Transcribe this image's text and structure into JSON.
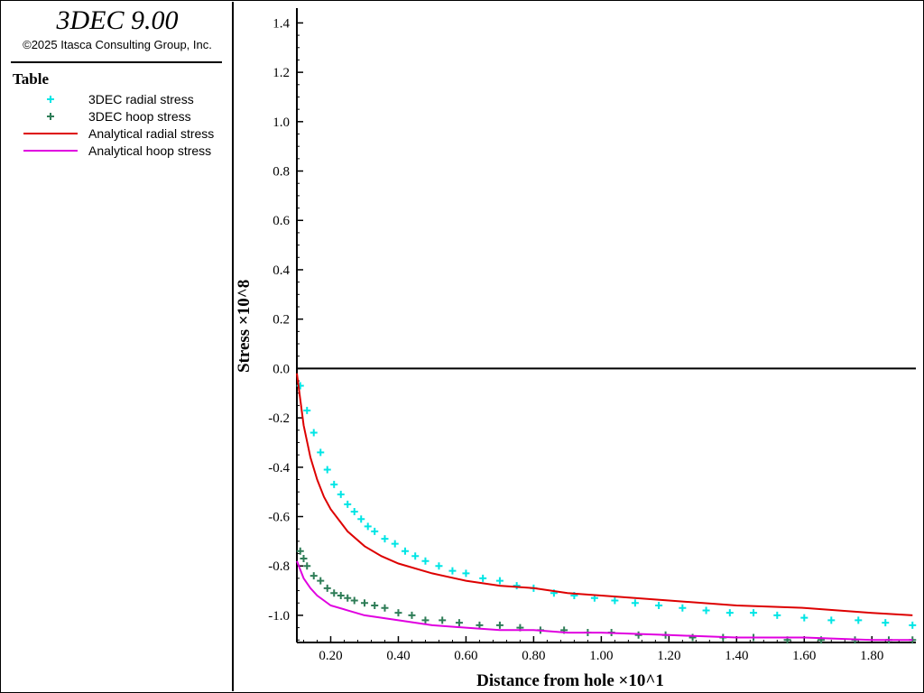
{
  "app": {
    "title": "3DEC 9.00",
    "copyright": "©2025 Itasca Consulting Group, Inc."
  },
  "legend": {
    "heading": "Table",
    "items": [
      {
        "label": "3DEC radial stress",
        "kind": "marker",
        "color": "#00e5e5"
      },
      {
        "label": "3DEC hoop stress",
        "kind": "marker",
        "color": "#2e7d57"
      },
      {
        "label": "Analytical radial stress",
        "kind": "line",
        "color": "#dd0000"
      },
      {
        "label": "Analytical hoop stress",
        "kind": "line",
        "color": "#e000e0"
      }
    ]
  },
  "chart_data": {
    "type": "scatter",
    "xlabel": "Distance from hole ×10^1",
    "ylabel": "Stress ×10^8",
    "xlim": [
      0.1,
      1.93
    ],
    "ylim": [
      -1.11,
      1.46
    ],
    "xticks": [
      "0.20",
      "0.40",
      "0.60",
      "0.80",
      "1.00",
      "1.20",
      "1.40",
      "1.60",
      "1.80"
    ],
    "yticks": [
      "1.4",
      "1.2",
      "1.0",
      "0.8",
      "0.6",
      "0.4",
      "0.2",
      "0.0",
      "-0.2",
      "-0.4",
      "-0.6",
      "-0.8",
      "-1.0"
    ],
    "grid": false,
    "series": [
      {
        "name": "3DEC radial stress",
        "style": "markers",
        "color": "#00e5e5",
        "x": [
          0.11,
          0.13,
          0.15,
          0.17,
          0.19,
          0.21,
          0.23,
          0.25,
          0.27,
          0.29,
          0.31,
          0.33,
          0.36,
          0.39,
          0.42,
          0.45,
          0.48,
          0.52,
          0.56,
          0.6,
          0.65,
          0.7,
          0.75,
          0.8,
          0.86,
          0.92,
          0.98,
          1.04,
          1.1,
          1.17,
          1.24,
          1.31,
          1.38,
          1.45,
          1.52,
          1.6,
          1.68,
          1.76,
          1.84,
          1.92
        ],
        "y": [
          -0.07,
          -0.17,
          -0.26,
          -0.34,
          -0.41,
          -0.47,
          -0.51,
          -0.55,
          -0.58,
          -0.61,
          -0.64,
          -0.66,
          -0.69,
          -0.71,
          -0.74,
          -0.76,
          -0.78,
          -0.8,
          -0.82,
          -0.83,
          -0.85,
          -0.86,
          -0.88,
          -0.89,
          -0.91,
          -0.92,
          -0.93,
          -0.94,
          -0.95,
          -0.96,
          -0.97,
          -0.98,
          -0.99,
          -0.99,
          -1.0,
          -1.01,
          -1.02,
          -1.02,
          -1.03,
          -1.04
        ]
      },
      {
        "name": "3DEC hoop stress",
        "style": "markers",
        "color": "#2e7d57",
        "x": [
          0.11,
          0.12,
          0.13,
          0.15,
          0.17,
          0.19,
          0.21,
          0.23,
          0.25,
          0.27,
          0.3,
          0.33,
          0.36,
          0.4,
          0.44,
          0.48,
          0.53,
          0.58,
          0.64,
          0.7,
          0.76,
          0.82,
          0.89,
          0.96,
          1.03,
          1.11,
          1.19,
          1.27,
          1.36,
          1.45,
          1.55,
          1.65,
          1.75,
          1.85,
          1.92
        ],
        "y": [
          -0.74,
          -0.77,
          -0.8,
          -0.84,
          -0.86,
          -0.89,
          -0.91,
          -0.92,
          -0.93,
          -0.94,
          -0.95,
          -0.96,
          -0.97,
          -0.99,
          -1.0,
          -1.02,
          -1.02,
          -1.03,
          -1.04,
          -1.04,
          -1.05,
          -1.06,
          -1.06,
          -1.07,
          -1.07,
          -1.08,
          -1.08,
          -1.09,
          -1.09,
          -1.09,
          -1.1,
          -1.1,
          -1.1,
          -1.1,
          -1.1
        ]
      },
      {
        "name": "Analytical radial stress",
        "style": "line",
        "color": "#dd0000",
        "x": [
          0.1,
          0.12,
          0.14,
          0.16,
          0.18,
          0.2,
          0.25,
          0.3,
          0.35,
          0.4,
          0.5,
          0.6,
          0.7,
          0.8,
          0.9,
          1.0,
          1.2,
          1.4,
          1.6,
          1.8,
          1.92
        ],
        "y": [
          -0.02,
          -0.23,
          -0.36,
          -0.45,
          -0.52,
          -0.57,
          -0.66,
          -0.72,
          -0.76,
          -0.79,
          -0.83,
          -0.86,
          -0.88,
          -0.89,
          -0.91,
          -0.92,
          -0.94,
          -0.96,
          -0.97,
          -0.99,
          -1.0
        ]
      },
      {
        "name": "Analytical hoop stress",
        "style": "line",
        "color": "#e000e0",
        "x": [
          0.1,
          0.12,
          0.14,
          0.16,
          0.18,
          0.2,
          0.25,
          0.3,
          0.35,
          0.4,
          0.5,
          0.6,
          0.7,
          0.8,
          0.9,
          1.0,
          1.2,
          1.4,
          1.6,
          1.8,
          1.92
        ],
        "y": [
          -0.78,
          -0.85,
          -0.89,
          -0.92,
          -0.94,
          -0.96,
          -0.98,
          -1.0,
          -1.01,
          -1.02,
          -1.04,
          -1.05,
          -1.06,
          -1.06,
          -1.07,
          -1.07,
          -1.08,
          -1.09,
          -1.09,
          -1.1,
          -1.1
        ]
      }
    ]
  }
}
